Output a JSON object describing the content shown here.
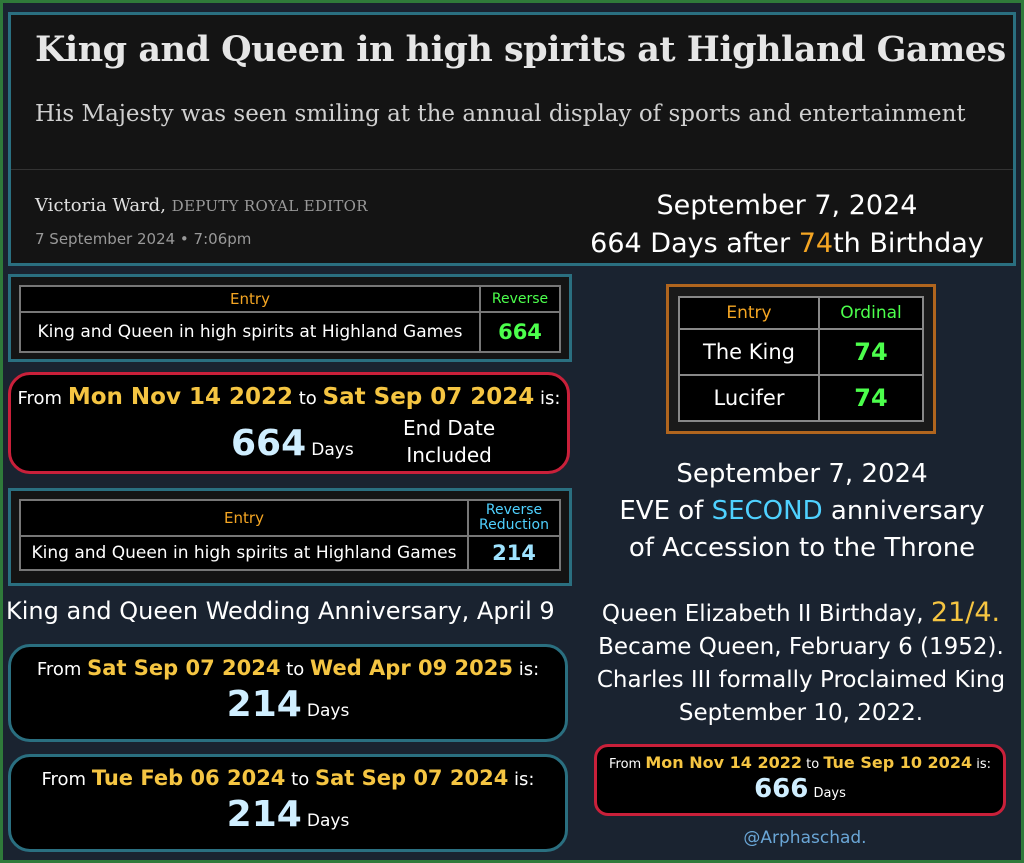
{
  "article": {
    "headline": "King and Queen in high spirits at Highland Games",
    "standfirst": "His Majesty was seen smiling at the annual display of sports and entertainment",
    "author": "Victoria Ward,",
    "role": "DEPUTY ROYAL EDITOR",
    "date": "7 September 2024 • 7:06pm"
  },
  "header_note": {
    "line1": "September 7, 2024",
    "line2_a": "664 Days after ",
    "line2_num": "74",
    "line2_b": "th Birthday"
  },
  "table1": {
    "col_entry": "Entry",
    "col_value": "Reverse",
    "phrase": "King and Queen in high spirits at Highland Games",
    "value": "664"
  },
  "calc1": {
    "from_label": "From",
    "from_date": "Mon Nov 14 2022",
    "to_label": "to",
    "to_date": "Sat Sep 07 2024",
    "is_label": "is:",
    "result": "664",
    "unit": "Days",
    "note1": "End Date",
    "note2": "Included"
  },
  "table2": {
    "col_entry": "Entry",
    "col_value1": "Reverse",
    "col_value2": "Reduction",
    "phrase": "King and Queen in high spirits at Highland Games",
    "value": "214"
  },
  "wedding_caption": "King and Queen Wedding Anniversary, April 9",
  "calc2": {
    "from_label": "From",
    "from_date": "Sat Sep 07 2024",
    "to_label": "to",
    "to_date": "Wed Apr 09 2025",
    "is_label": "is:",
    "result": "214",
    "unit": "Days"
  },
  "calc3": {
    "from_label": "From",
    "from_date": "Tue Feb 06 2024",
    "to_label": "to",
    "to_date": "Sat Sep 07 2024",
    "is_label": "is:",
    "result": "214",
    "unit": "Days"
  },
  "ordinal_table": {
    "col_entry": "Entry",
    "col_value": "Ordinal",
    "rows": [
      {
        "name": "The King",
        "value": "74"
      },
      {
        "name": "Lucifer",
        "value": "74"
      }
    ]
  },
  "eve_note": {
    "line1": "September 7, 2024",
    "line2_a": "EVE of ",
    "line2_hl": "SECOND",
    "line2_b": " anniversary",
    "line3": "of Accession to the Throne"
  },
  "facts": {
    "line1_a": "Queen Elizabeth II Birthday, ",
    "line1_hl": "21/4.",
    "line2": "Became Queen, February 6 (1952).",
    "line3": "Charles III formally Proclaimed King",
    "line4": "September 10, 2022."
  },
  "calc4": {
    "from_label": "From",
    "from_date": "Mon Nov 14 2022",
    "to_label": "to",
    "to_date": "Tue Sep 10 2024",
    "is_label": "is:",
    "result": "666",
    "unit": "Days"
  },
  "handle": "@Arphaschad.",
  "colors": {
    "background": "#1a2330",
    "accent_orange": "#f5a623",
    "date_gold": "#f5c542",
    "gematria_green": "#4cff4c",
    "highlight_cyan": "#4fd1ff",
    "red_border": "#c9203a",
    "teal_border": "#2a6f80"
  }
}
